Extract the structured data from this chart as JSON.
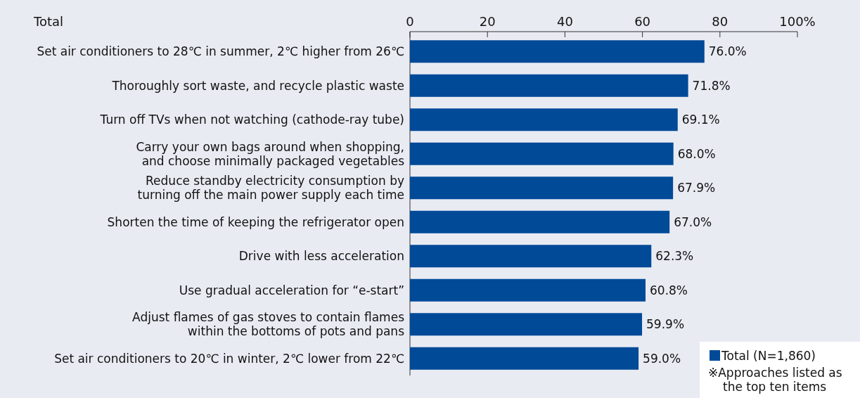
{
  "chart_data": {
    "type": "bar",
    "orientation": "horizontal",
    "title": "Total",
    "categories": [
      "Set air conditioners to 28℃ in summer, 2℃ higher from 26℃",
      "Thoroughly sort waste, and recycle plastic waste",
      "Turn off TVs when not watching (cathode-ray tube)",
      "Carry your own bags around when shopping,\nand choose minimally packaged vegetables",
      "Reduce standby electricity consumption by\nturning off the main power supply each time",
      "Shorten the time of keeping the refrigerator open",
      "Drive with less acceleration",
      "Use gradual acceleration for “e-start”",
      "Adjust flames of gas stoves to contain flames\nwithin the bottoms of pots and pans",
      "Set air conditioners to 20℃ in winter, 2℃ lower from 22℃"
    ],
    "series": [
      {
        "name": "Total (N=1,860)",
        "color": "#004a98",
        "values": [
          76.0,
          71.8,
          69.1,
          68.0,
          67.9,
          67.0,
          62.3,
          60.8,
          59.9,
          59.0
        ],
        "value_labels": [
          "76.0%",
          "71.8%",
          "69.1%",
          "68.0%",
          "67.9%",
          "67.0%",
          "62.3%",
          "60.8%",
          "59.9%",
          "59.0%"
        ]
      }
    ],
    "xlim": [
      0,
      100
    ],
    "xticks": [
      0,
      20,
      40,
      60,
      80,
      {
        "value": 100,
        "label": "100%"
      }
    ],
    "grid": false,
    "legend": "bottom right",
    "annotations": [
      "※Approaches listed as\nthe top ten items"
    ]
  }
}
